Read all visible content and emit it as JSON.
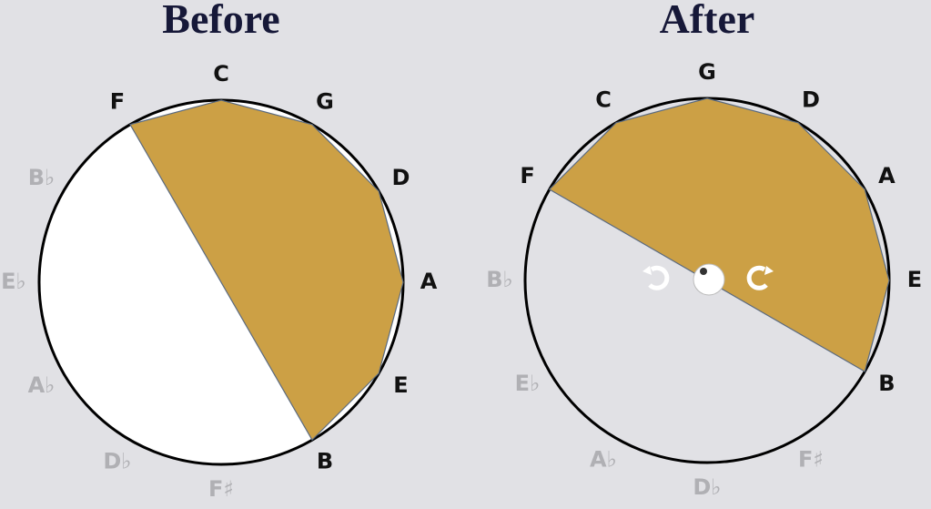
{
  "panels": [
    {
      "title": "Before",
      "notes": [
        {
          "label": "C",
          "active": true
        },
        {
          "label": "G",
          "active": true
        },
        {
          "label": "D",
          "active": true
        },
        {
          "label": "A",
          "active": true
        },
        {
          "label": "E",
          "active": true
        },
        {
          "label": "B",
          "active": true
        },
        {
          "label": "F♯",
          "active": false
        },
        {
          "label": "D♭",
          "active": false
        },
        {
          "label": "A♭",
          "active": false
        },
        {
          "label": "E♭",
          "active": false
        },
        {
          "label": "B♭",
          "active": false
        },
        {
          "label": "F",
          "active": true
        }
      ]
    },
    {
      "title": "After",
      "notes": [
        {
          "label": "G",
          "active": true
        },
        {
          "label": "D",
          "active": true
        },
        {
          "label": "A",
          "active": true
        },
        {
          "label": "E",
          "active": true
        },
        {
          "label": "B",
          "active": true
        },
        {
          "label": "F♯",
          "active": false
        },
        {
          "label": "D♭",
          "active": false
        },
        {
          "label": "A♭",
          "active": false
        },
        {
          "label": "E♭",
          "active": false
        },
        {
          "label": "B♭",
          "active": false
        },
        {
          "label": "F",
          "active": true
        },
        {
          "label": "C",
          "active": true
        }
      ]
    }
  ]
}
